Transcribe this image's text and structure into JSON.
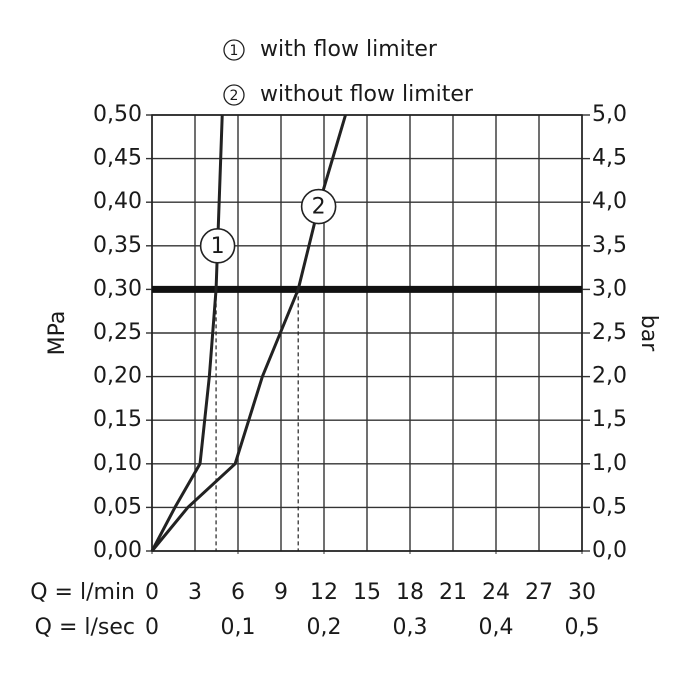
{
  "chart_data": {
    "type": "line",
    "legend_position": "top",
    "ylabel": "MPa",
    "y2label": "bar",
    "xlabel": "Q = l/min",
    "x2label": "Q = l/sec",
    "xlim": [
      0,
      30
    ],
    "xticks": [
      0,
      3,
      6,
      9,
      12,
      15,
      18,
      21,
      24,
      27,
      30
    ],
    "x2lim": [
      0,
      0.5
    ],
    "x2ticks": [
      0,
      {
        "value": 0.1,
        "label": "0,1"
      },
      {
        "value": 0.2,
        "label": "0,2"
      },
      {
        "value": 0.3,
        "label": "0,3"
      },
      {
        "value": 0.4,
        "label": "0,4"
      },
      {
        "value": 0.5,
        "label": "0,5"
      }
    ],
    "ylim": [
      0,
      0.5
    ],
    "yticks": [
      {
        "value": 0,
        "label": "0,00"
      },
      {
        "value": 0.05,
        "label": "0,05"
      },
      {
        "value": 0.1,
        "label": "0,10"
      },
      {
        "value": 0.15,
        "label": "0,15"
      },
      {
        "value": 0.2,
        "label": "0,20"
      },
      {
        "value": 0.25,
        "label": "0,25"
      },
      {
        "value": 0.3,
        "label": "0,30"
      },
      {
        "value": 0.35,
        "label": "0,35"
      },
      {
        "value": 0.4,
        "label": "0,40"
      },
      {
        "value": 0.45,
        "label": "0,45"
      },
      {
        "value": 0.5,
        "label": "0,50"
      }
    ],
    "y2lim": [
      0,
      5
    ],
    "y2ticks": [
      {
        "value": 0,
        "label": "0,0"
      },
      {
        "value": 0.5,
        "label": "0,5"
      },
      {
        "value": 1,
        "label": "1,0"
      },
      {
        "value": 1.5,
        "label": "1,5"
      },
      {
        "value": 2,
        "label": "2,0"
      },
      {
        "value": 2.5,
        "label": "2,5"
      },
      {
        "value": 3,
        "label": "3,0"
      },
      {
        "value": 3.5,
        "label": "3,5"
      },
      {
        "value": 4,
        "label": "4,0"
      },
      {
        "value": 4.5,
        "label": "4,5"
      },
      {
        "value": 5,
        "label": "5,0"
      }
    ],
    "grid": true,
    "reference_line": {
      "y": 0.3,
      "color": "#111"
    },
    "series": [
      {
        "name": "with flow limiter",
        "label": "1",
        "color": "#222",
        "x": [
          0,
          1.6,
          3.35,
          4.0,
          4.47,
          4.9
        ],
        "values": [
          0,
          0.05,
          0.1,
          0.2,
          0.3,
          0.5
        ]
      },
      {
        "name": "without flow limiter",
        "label": "2",
        "color": "#222",
        "x": [
          0,
          2.5,
          5.8,
          7.7,
          10.2,
          11.7,
          13.5
        ],
        "values": [
          0,
          0.05,
          0.1,
          0.2,
          0.3,
          0.4,
          0.5
        ]
      }
    ]
  }
}
